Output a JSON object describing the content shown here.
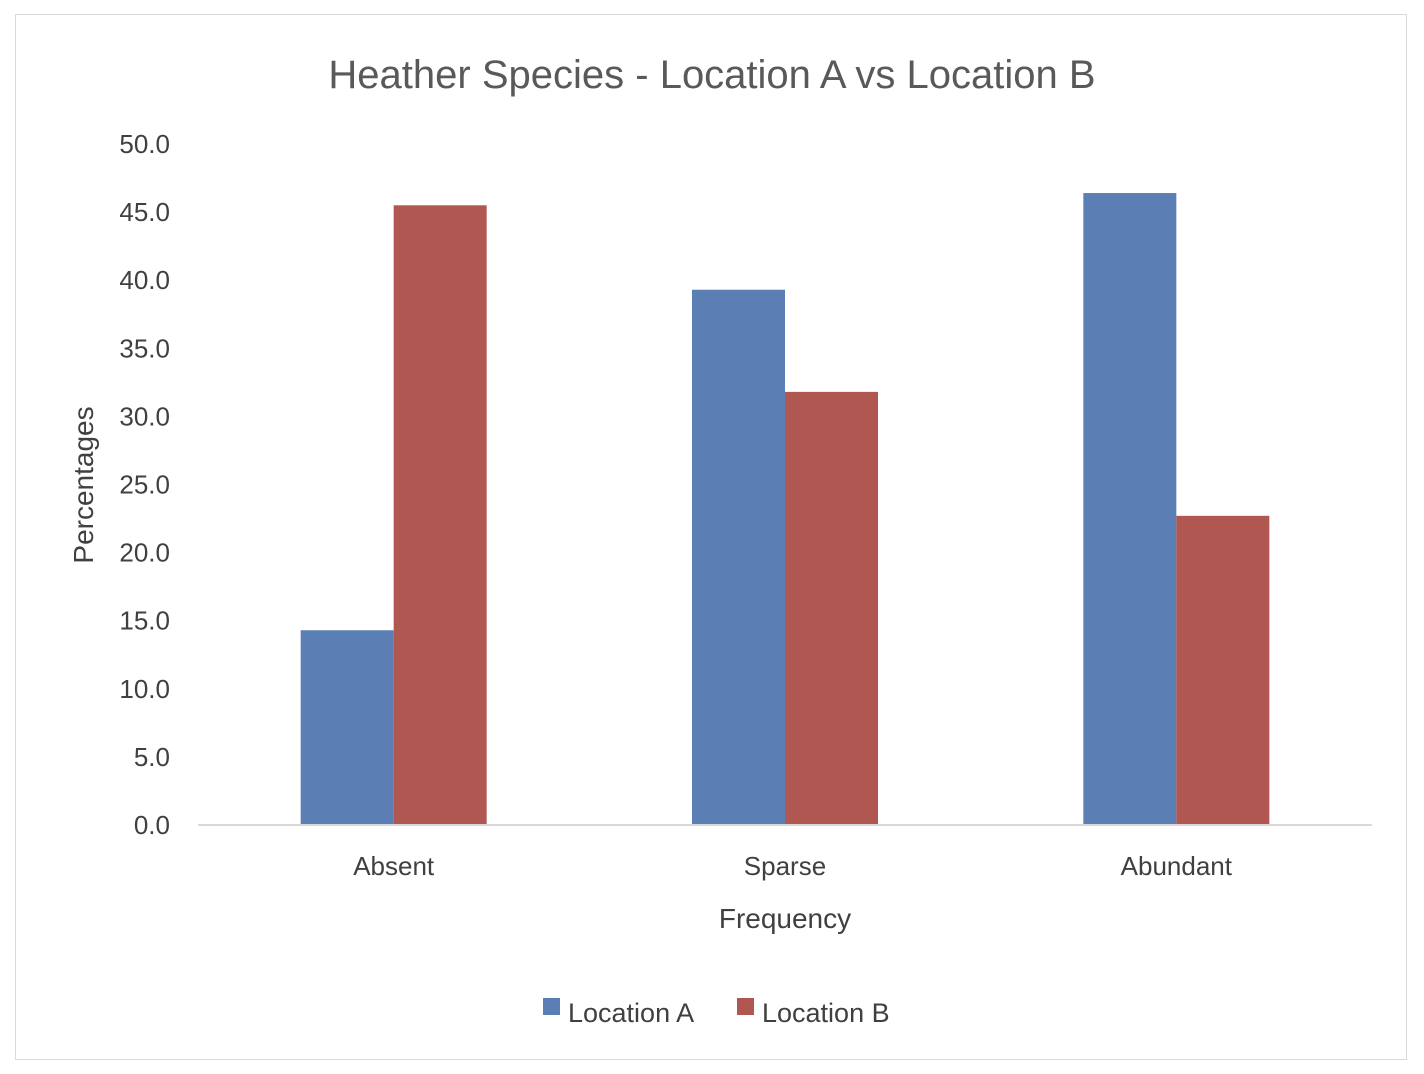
{
  "chart_data": {
    "type": "bar",
    "title": "Heather Species - Location A vs Location B",
    "xlabel": "Frequency",
    "ylabel": "Percentages",
    "categories": [
      "Absent",
      "Sparse",
      "Abundant"
    ],
    "series": [
      {
        "name": "Location A",
        "values": [
          14.3,
          39.3,
          46.4
        ],
        "color": "#5b7fb5"
      },
      {
        "name": "Location B",
        "values": [
          45.5,
          31.8,
          22.7
        ],
        "color": "#b05752"
      }
    ],
    "ylim": [
      0,
      50
    ],
    "y_ticks": [
      "0.0",
      "5.0",
      "10.0",
      "15.0",
      "20.0",
      "25.0",
      "30.0",
      "35.0",
      "40.0",
      "45.0",
      "50.0"
    ],
    "grid": false,
    "legend_position": "bottom"
  }
}
